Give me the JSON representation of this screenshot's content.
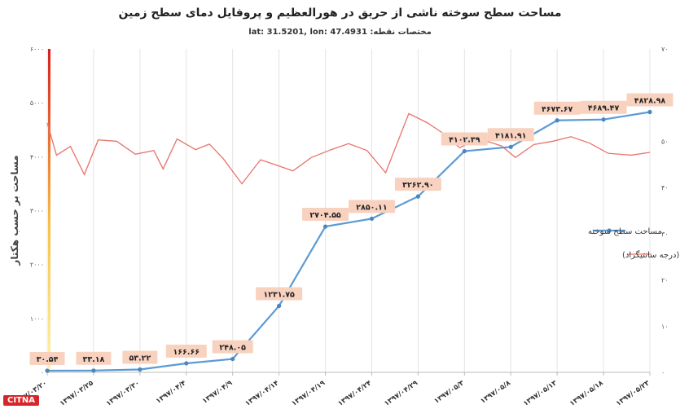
{
  "title": "مساحت سطح سوخته ناشی از حریق در هورالعظیم و  پروفایل دمای سطح زمین",
  "subtitle_label": "مختصات نقطه:",
  "subtitle_coords": "lat: 31.5201, lon: 47.4931",
  "logo_text": "CITNA",
  "chart_data": {
    "type": "line",
    "ylabel": "مساحت بر حسب هکتار",
    "ylim": [
      0,
      6000
    ],
    "y_ticks": [
      "۰",
      "۱۰۰۰",
      "۲۰۰۰",
      "۳۰۰۰",
      "۴۰۰۰",
      "۵۰۰۰",
      "۶۰۰۰"
    ],
    "y2lim": [
      0,
      70
    ],
    "y2_ticks": [
      "۰",
      "۱۰",
      "۲۰",
      "۳۰",
      "۴۰",
      "۵۰",
      "۶۰",
      "۷۰"
    ],
    "x_tick_labels": [
      "۱۳۹۷/۰۳/۲۰",
      "۱۳۹۷/۰۳/۲۵",
      "۱۳۹۷/۰۳/۳۰",
      "۱۳۹۷/۰۴/۴",
      "۱۳۹۷/۰۴/۹",
      "۱۳۹۷/۰۴/۱۴",
      "۱۳۹۷/۰۴/۱۹",
      "۱۳۹۷/۰۴/۲۴",
      "۱۳۹۷/۰۴/۲۹",
      "۱۳۹۷/۰۵/۳",
      "۱۳۹۷/۰۵/۸",
      "۱۳۹۷/۰۵/۱۳",
      "۱۳۹۷/۰۵/۱۸",
      "۱۳۹۷/۰۵/۲۳"
    ],
    "legend_position": "right",
    "grid": "vertical",
    "series": [
      {
        "name": "مساحت سطح سوخته",
        "axis": "left",
        "color": "#5b9bd5",
        "x": [
          0,
          1,
          2,
          3,
          4,
          5,
          6,
          7,
          8,
          9,
          10,
          11,
          12,
          13
        ],
        "values": [
          30.54,
          33.18,
          53.22,
          166.66,
          248.05,
          1231.75,
          2704.55,
          2850.11,
          3262.9,
          4102.39,
          4181.91,
          4673.67,
          4689.47,
          4828.98
        ],
        "labels": [
          "۳۰.۵۴",
          "۳۳.۱۸",
          "۵۳.۲۲",
          "۱۶۶.۶۶",
          "۲۴۸.۰۵",
          "۱۲۳۱.۷۵",
          "۲۷۰۴.۵۵",
          "۲۸۵۰.۱۱",
          "۳۲۶۲.۹۰",
          "۴۱۰۲.۳۹",
          "۴۱۸۱.۹۱",
          "۴۶۷۳.۶۷",
          "۴۶۸۹.۴۷",
          "۴۸۲۸.۹۸"
        ]
      },
      {
        "name": "دمای سطح زمین (درجه سانتیگراد)",
        "axis": "right",
        "color": "#e8736b",
        "x": [
          0,
          0.2,
          0.5,
          0.8,
          1.1,
          1.5,
          1.9,
          2.3,
          2.5,
          2.8,
          3.2,
          3.5,
          3.8,
          4.2,
          4.6,
          4.9,
          5.3,
          5.7,
          6.1,
          6.5,
          6.9,
          7.3,
          7.8,
          8.2,
          8.5,
          8.9,
          9.3,
          9.8,
          10.1,
          10.5,
          10.9,
          11.3,
          11.7,
          12.1,
          12.6,
          13.0
        ],
        "values": [
          54,
          47,
          48.9,
          42.8,
          50.3,
          50,
          47.2,
          48,
          44,
          50.5,
          48.2,
          49.4,
          46.2,
          40.8,
          46,
          45,
          43.6,
          46.5,
          48.1,
          49.5,
          48,
          43.2,
          56,
          54,
          52,
          48.6,
          50.6,
          49,
          46.5,
          49.3,
          50,
          51,
          49.6,
          47.4,
          47,
          47.6
        ]
      }
    ]
  }
}
